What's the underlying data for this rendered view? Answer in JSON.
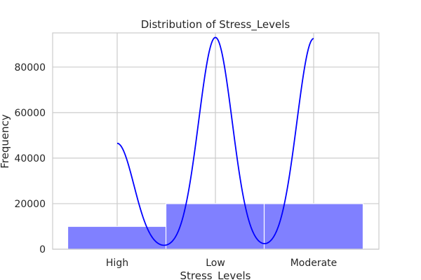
{
  "chart_data": {
    "type": "bar",
    "title": "Distribution of Stress_Levels",
    "xlabel": "Stress_Levels",
    "ylabel": "Frequency",
    "categories": [
      "High",
      "Low",
      "Moderate"
    ],
    "values": [
      10000,
      20000,
      20000
    ],
    "ylim": [
      0,
      95000
    ],
    "yticks": [
      0,
      20000,
      40000,
      60000,
      80000
    ],
    "grid": true,
    "kde": {
      "color": "#0000ff",
      "peaks": [
        46500,
        93000,
        92500
      ],
      "bandwidth": 0.17
    },
    "bar_color": "#8080ff",
    "bar_edge_color": "#ffffff"
  }
}
